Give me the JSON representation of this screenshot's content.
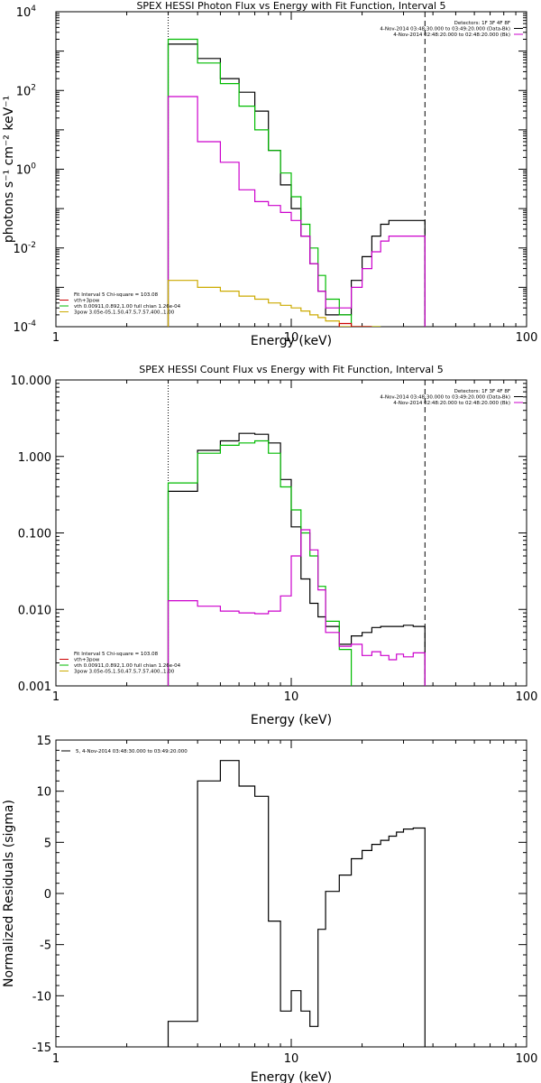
{
  "chart_data": [
    {
      "type": "line",
      "title": "SPEX HESSI Photon Flux vs Energy with Fit Function, Interval 5",
      "xlabel": "Energy (keV)",
      "ylabel": "photons s⁻¹ cm⁻² keV⁻¹",
      "xscale": "log",
      "yscale": "log",
      "xlim": [
        1,
        100
      ],
      "ylim": [
        0.0001,
        10000
      ],
      "xticks": [
        {
          "v": 1,
          "label": "1"
        },
        {
          "v": 10,
          "label": "10"
        },
        {
          "v": 100,
          "label": "100"
        }
      ],
      "yticks": [
        {
          "v": 0.0001,
          "base": "10",
          "exp": "-4"
        },
        {
          "v": 0.01,
          "base": "10",
          "exp": "-2"
        },
        {
          "v": 1,
          "base": "10",
          "exp": "0"
        },
        {
          "v": 100,
          "base": "10",
          "exp": "2"
        },
        {
          "v": 10000,
          "base": "10",
          "exp": "4"
        }
      ],
      "vlines": [
        {
          "x": 3,
          "style": "dotted"
        },
        {
          "x": 37,
          "style": "dashed"
        }
      ],
      "legend_topright": [
        {
          "text": "Detectors: 1F 3F 4F 8F",
          "color": null
        },
        {
          "text": "4-Nov-2014 03:48:30.000 to 03:49:20.000 (Data-Bk)",
          "color": "#000000"
        },
        {
          "text": "4-Nov-2014 02:48:20.000 to 02:48:20.000 (Bk)",
          "color": "#cc00cc"
        }
      ],
      "legend_bottomleft": [
        {
          "text": "Fit Interval 5   Chi-square = 103.08",
          "color": null
        },
        {
          "text": "vth+3pow",
          "color": "#cc0000"
        },
        {
          "text": "vth 0.00911,0.892,1.00  full chian 1.26e-04",
          "color": "#00bb00"
        },
        {
          "text": "3pow 3.05e-05,1.50,47.5,7.57,400.,1.00",
          "color": "#ccaa00"
        }
      ],
      "series": [
        {
          "name": "Data-Bk",
          "color": "#000000",
          "edges": [
            3,
            4,
            5,
            6,
            7,
            8,
            9,
            10,
            11,
            12,
            13,
            14,
            16,
            18,
            20,
            22,
            24,
            26,
            28,
            30,
            33,
            37
          ],
          "values": [
            1500,
            650,
            200,
            90,
            30,
            3,
            0.4,
            0.1,
            0.02,
            0.004,
            0.0008,
            0.0002,
            0.0002,
            0.0015,
            0.006,
            0.02,
            0.04,
            0.05,
            0.05,
            0.05,
            0.05
          ]
        },
        {
          "name": "vth+3pow",
          "color": "#00bb00",
          "edges": [
            3,
            4,
            5,
            6,
            7,
            8,
            9,
            10,
            11,
            12,
            13,
            14,
            16,
            18,
            20,
            22,
            24
          ],
          "values": [
            2000,
            500,
            150,
            40,
            10,
            3,
            0.8,
            0.2,
            0.04,
            0.01,
            0.002,
            0.0005,
            0.0002,
            0.0001,
            8e-05,
            6e-05
          ]
        },
        {
          "name": "Bk",
          "color": "#cc00cc",
          "edges": [
            3,
            4,
            5,
            6,
            7,
            8,
            9,
            10,
            11,
            12,
            13,
            14,
            16,
            18,
            20,
            22,
            24,
            26,
            28,
            30,
            33,
            37
          ],
          "values": [
            70,
            5,
            1.5,
            0.3,
            0.15,
            0.12,
            0.08,
            0.05,
            0.02,
            0.004,
            0.0008,
            0.0003,
            0.0003,
            0.001,
            0.003,
            0.008,
            0.015,
            0.02,
            0.02,
            0.02,
            0.02
          ]
        },
        {
          "name": "3pow",
          "color": "#ccaa00",
          "edges": [
            3,
            4,
            5,
            6,
            7,
            8,
            9,
            10,
            11,
            12,
            13,
            14,
            16,
            18,
            20,
            22,
            24
          ],
          "values": [
            0.0015,
            0.001,
            0.0008,
            0.0006,
            0.0005,
            0.0004,
            0.00035,
            0.0003,
            0.00025,
            0.0002,
            0.00017,
            0.00014,
            0.0001,
            8e-05,
            7e-05,
            6e-05
          ]
        },
        {
          "name": "vth+3pow (red)",
          "color": "#cc0000",
          "edges": [
            16,
            18,
            20,
            22
          ],
          "values": [
            0.00012,
            9e-05,
            8e-05
          ]
        }
      ]
    },
    {
      "type": "line",
      "title": "SPEX HESSI Count Flux vs Energy with Fit Function, Interval 5",
      "xlabel": "Energy (keV)",
      "ylabel": "",
      "xscale": "log",
      "yscale": "log",
      "xlim": [
        1,
        100
      ],
      "ylim": [
        0.001,
        10
      ],
      "xticks": [
        {
          "v": 1,
          "label": "1"
        },
        {
          "v": 10,
          "label": "10"
        },
        {
          "v": 100,
          "label": "100"
        }
      ],
      "yticks": [
        {
          "v": 0.001,
          "label": "0.001"
        },
        {
          "v": 0.01,
          "label": "0.010"
        },
        {
          "v": 0.1,
          "label": "0.100"
        },
        {
          "v": 1,
          "label": "1.000"
        },
        {
          "v": 10,
          "label": "10.000"
        }
      ],
      "vlines": [
        {
          "x": 3,
          "style": "dotted"
        },
        {
          "x": 37,
          "style": "dashed"
        }
      ],
      "legend_topright": [
        {
          "text": "Detectors: 1F 3F 4F 8F",
          "color": null
        },
        {
          "text": "4-Nov-2014 03:48:30.000 to 03:49:20.000 (Data-Bk)",
          "color": "#000000"
        },
        {
          "text": "4-Nov-2014 02:48:20.000 to 02:48:20.000 (Bk)",
          "color": "#cc00cc"
        }
      ],
      "legend_bottomleft": [
        {
          "text": "Fit Interval 5   Chi-square = 103.08",
          "color": null
        },
        {
          "text": "vth+3pow",
          "color": "#cc0000"
        },
        {
          "text": "vth 0.00911,0.892,1.00  full chian 1.26e-04",
          "color": "#00bb00"
        },
        {
          "text": "3pow 3.05e-05,1.50,47.5,7.57,400.,1.00",
          "color": "#ccaa00"
        }
      ],
      "series": [
        {
          "name": "Data-Bk",
          "color": "#000000",
          "edges": [
            3,
            4,
            5,
            6,
            7,
            8,
            9,
            10,
            11,
            12,
            13,
            14,
            16,
            18,
            20,
            22,
            24,
            26,
            28,
            30,
            33,
            37
          ],
          "values": [
            0.35,
            1.2,
            1.6,
            2.0,
            1.95,
            1.5,
            0.5,
            0.12,
            0.025,
            0.012,
            0.008,
            0.006,
            0.0035,
            0.0045,
            0.005,
            0.0058,
            0.006,
            0.006,
            0.006,
            0.0062,
            0.006
          ]
        },
        {
          "name": "vth+3pow",
          "color": "#00bb00",
          "edges": [
            3,
            4,
            5,
            6,
            7,
            8,
            9,
            10,
            11,
            12,
            13,
            14,
            16,
            18
          ],
          "values": [
            0.45,
            1.1,
            1.4,
            1.5,
            1.6,
            1.1,
            0.4,
            0.2,
            0.1,
            0.05,
            0.02,
            0.007,
            0.003
          ]
        },
        {
          "name": "Bk",
          "color": "#cc00cc",
          "edges": [
            3,
            4,
            5,
            6,
            7,
            8,
            9,
            10,
            11,
            12,
            13,
            14,
            16,
            18,
            20,
            22,
            24,
            26,
            28,
            30,
            33,
            37
          ],
          "values": [
            0.013,
            0.011,
            0.0095,
            0.009,
            0.0088,
            0.0095,
            0.015,
            0.05,
            0.11,
            0.06,
            0.018,
            0.005,
            0.0033,
            0.0035,
            0.0025,
            0.0028,
            0.0025,
            0.0022,
            0.0026,
            0.0024,
            0.0027
          ]
        }
      ]
    },
    {
      "type": "line",
      "title": "",
      "xlabel": "Energy (keV)",
      "ylabel": "Normalized Residuals (sigma)",
      "xscale": "log",
      "yscale": "linear",
      "xlim": [
        1,
        100
      ],
      "ylim": [
        -15,
        15
      ],
      "xticks": [
        {
          "v": 1,
          "label": "1"
        },
        {
          "v": 10,
          "label": "10"
        },
        {
          "v": 100,
          "label": "100"
        }
      ],
      "yticks": [
        {
          "v": -15,
          "label": "-15"
        },
        {
          "v": -10,
          "label": "-10"
        },
        {
          "v": -5,
          "label": "-5"
        },
        {
          "v": 0,
          "label": "0"
        },
        {
          "v": 5,
          "label": "5"
        },
        {
          "v": 10,
          "label": "10"
        },
        {
          "v": 15,
          "label": "15"
        }
      ],
      "vlines": [],
      "legend_topleft": [
        {
          "text": "5,  4-Nov-2014 03:48:30.000 to 03:49:20.000",
          "color": "#000000"
        }
      ],
      "series": [
        {
          "name": "Residuals",
          "color": "#000000",
          "edges": [
            3,
            4,
            5,
            6,
            7,
            8,
            9,
            10,
            11,
            12,
            13,
            14,
            16,
            18,
            20,
            22,
            24,
            26,
            28,
            30,
            33,
            37
          ],
          "values": [
            -12.5,
            11.0,
            13.0,
            10.5,
            9.5,
            -2.7,
            -11.5,
            -9.5,
            -11.5,
            -13.0,
            -3.5,
            0.2,
            1.8,
            3.4,
            4.2,
            4.8,
            5.2,
            5.6,
            6.0,
            6.3,
            6.4
          ]
        }
      ]
    }
  ]
}
